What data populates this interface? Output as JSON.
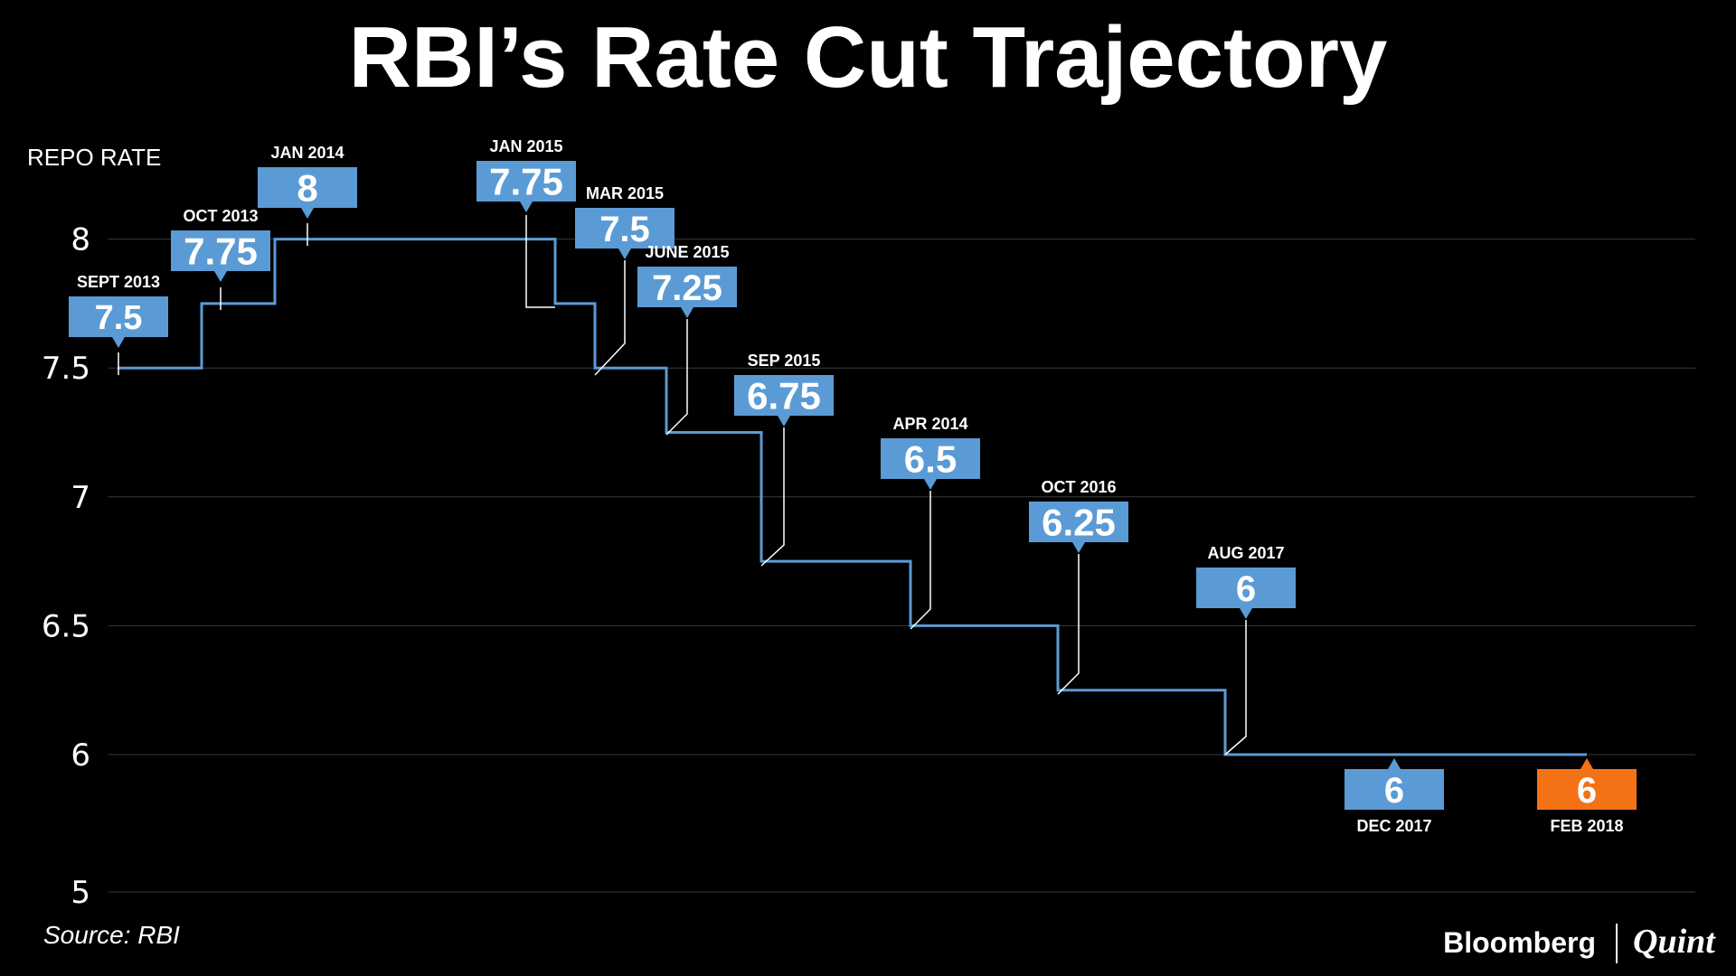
{
  "title": "RBI’s Rate Cut Trajectory",
  "source": "Source: RBI",
  "brand": {
    "primary": "Bloomberg",
    "secondary": "Quint"
  },
  "colors": {
    "background": "#000000",
    "line": "#5b9bd5",
    "callout": "#5b9bd5",
    "highlight": "#f47216",
    "grid": "#3a3a3a",
    "text": "#ffffff"
  },
  "chart_data": {
    "type": "line",
    "style": "step",
    "ylabel": "REPO RATE",
    "xlabel": "",
    "yticks": [
      "8",
      "7.5",
      "7",
      "6.5",
      "6",
      "5"
    ],
    "grid": true,
    "events": [
      {
        "date": "SEPT 2013",
        "value": 7.5,
        "label": "7.5",
        "highlight": false,
        "label_position": "above"
      },
      {
        "date": "OCT 2013",
        "value": 7.75,
        "label": "7.75",
        "highlight": false,
        "label_position": "above"
      },
      {
        "date": "JAN 2014",
        "value": 8,
        "label": "8",
        "highlight": false,
        "label_position": "above"
      },
      {
        "date": "JAN 2015",
        "value": 7.75,
        "label": "7.75",
        "highlight": false,
        "label_position": "above"
      },
      {
        "date": "MAR 2015",
        "value": 7.5,
        "label": "7.5",
        "highlight": false,
        "label_position": "above"
      },
      {
        "date": "JUNE 2015",
        "value": 7.25,
        "label": "7.25",
        "highlight": false,
        "label_position": "above"
      },
      {
        "date": "SEP 2015",
        "value": 6.75,
        "label": "6.75",
        "highlight": false,
        "label_position": "above"
      },
      {
        "date": "APR 2014",
        "value": 6.5,
        "label": "6.5",
        "highlight": false,
        "label_position": "above"
      },
      {
        "date": "OCT 2016",
        "value": 6.25,
        "label": "6.25",
        "highlight": false,
        "label_position": "above"
      },
      {
        "date": "AUG 2017",
        "value": 6,
        "label": "6",
        "highlight": false,
        "label_position": "above"
      },
      {
        "date": "DEC 2017",
        "value": 6,
        "label": "6",
        "highlight": false,
        "label_position": "below"
      },
      {
        "date": "FEB 2018",
        "value": 6,
        "label": "6",
        "highlight": true,
        "label_position": "below"
      }
    ]
  }
}
